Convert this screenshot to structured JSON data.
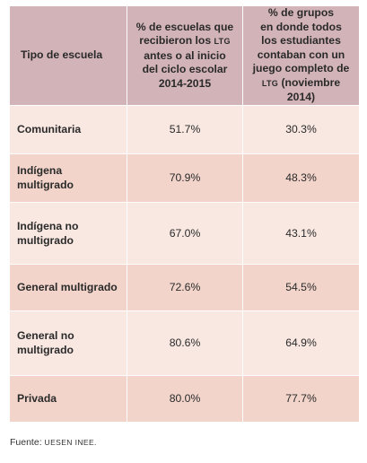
{
  "table": {
    "headers": [
      {
        "text": "Tipo de escuela"
      },
      {
        "line1": "% de escuelas que",
        "line2": "recibieron los ",
        "ltg": "LTG",
        "line3": "antes o al inicio",
        "line4": "del ciclo escolar",
        "line5": "2014-2015"
      },
      {
        "line1": "% de grupos",
        "line2": "en donde todos",
        "line3": "los estudiantes",
        "line4": "contaban con un",
        "line5": "juego completo de",
        "ltg": "LTG",
        "line6": " (noviembre 2014)"
      }
    ],
    "rows": [
      {
        "type": "Comunitaria",
        "pct_schools": "51.7%",
        "pct_groups": "30.3%"
      },
      {
        "type": "Indígena multigrado",
        "pct_schools": "70.9%",
        "pct_groups": "48.3%"
      },
      {
        "type": "Indígena no multigrado",
        "pct_schools": "67.0%",
        "pct_groups": "43.1%"
      },
      {
        "type": "General multigrado",
        "pct_schools": "72.6%",
        "pct_groups": "54.5%"
      },
      {
        "type": "General no multigrado",
        "pct_schools": "80.6%",
        "pct_groups": "64.9%"
      },
      {
        "type": "Privada",
        "pct_schools": "80.0%",
        "pct_groups": "77.7%"
      }
    ]
  },
  "source": {
    "label": "Fuente: ",
    "text": "UESEN INEE."
  },
  "colors": {
    "header_bg": "#d2b3b8",
    "row_light": "#f9e8e2",
    "row_dark": "#f2d4ca"
  }
}
